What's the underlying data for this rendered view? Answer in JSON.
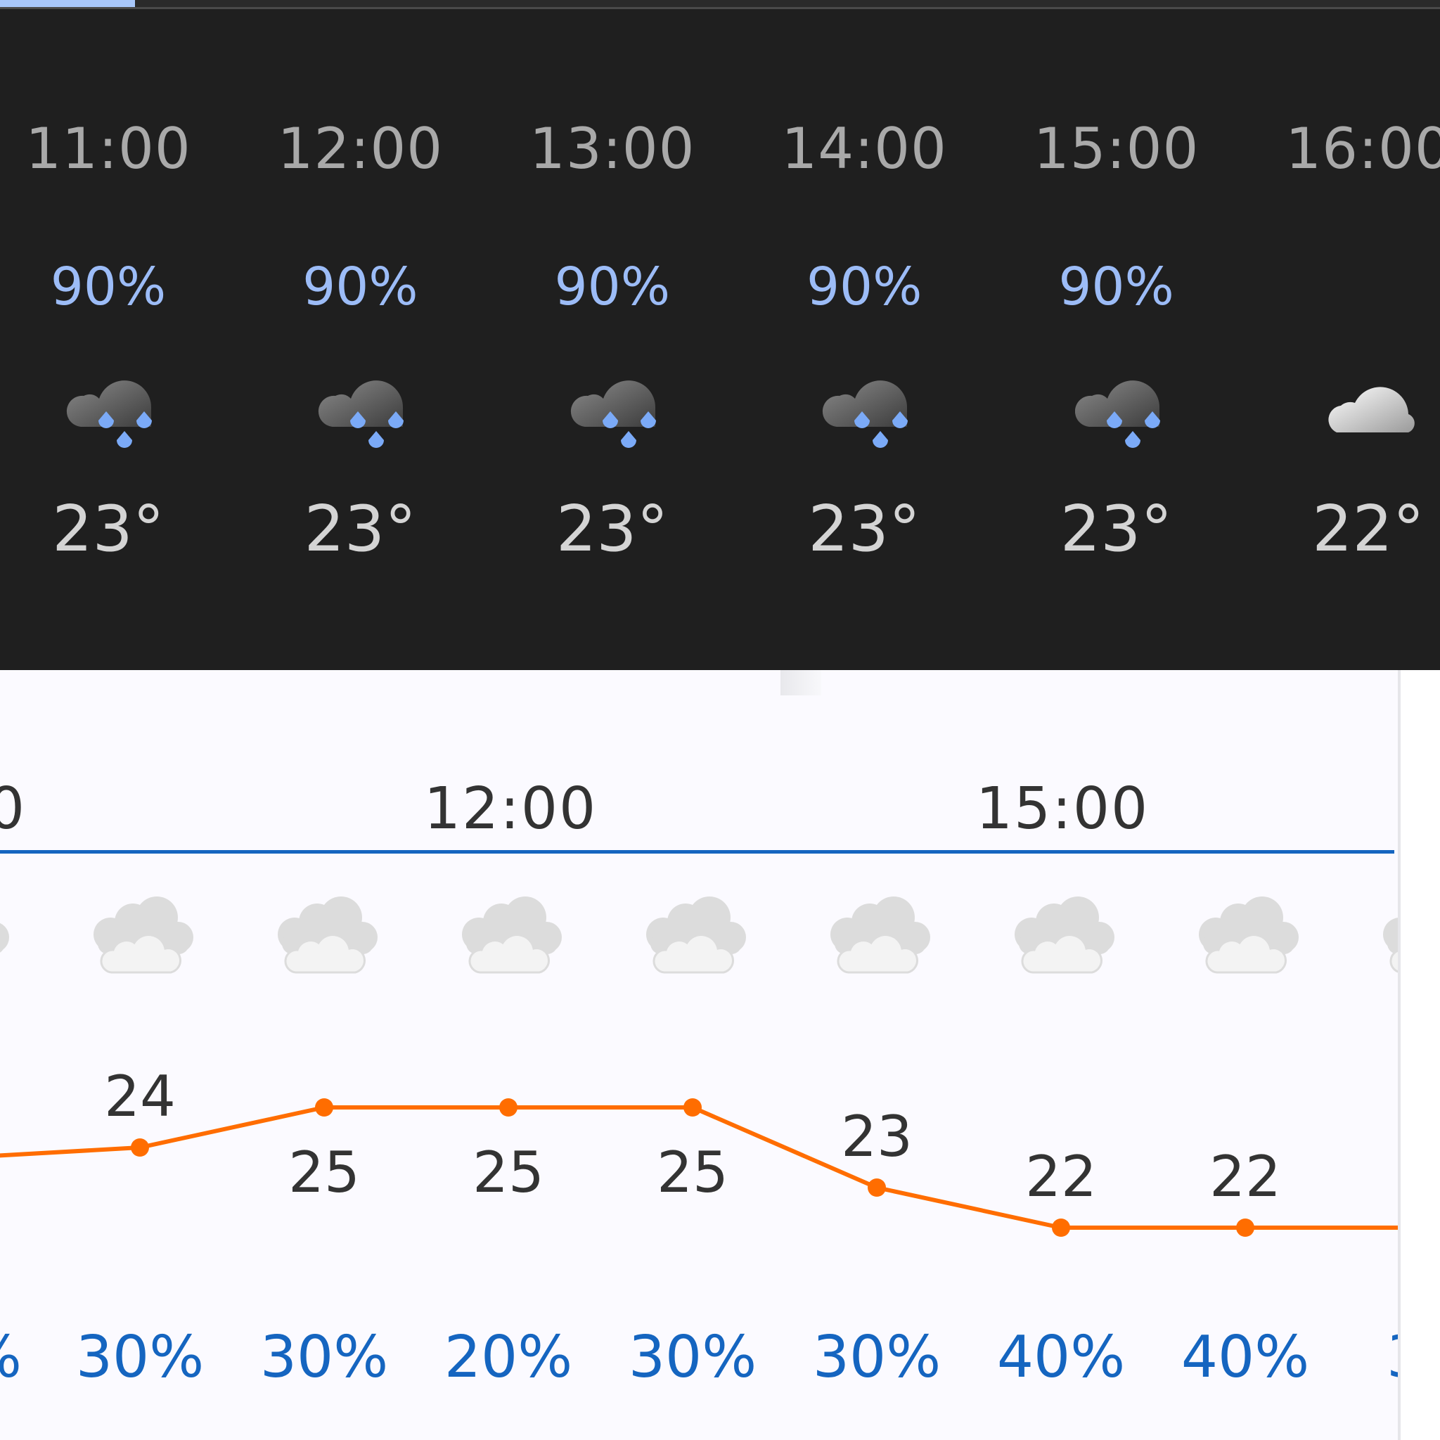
{
  "hourly_panel": {
    "hours": [
      {
        "time": "11:00",
        "precip": "90%",
        "icon": "rain-cloud-icon",
        "temp": "23°"
      },
      {
        "time": "12:00",
        "precip": "90%",
        "icon": "rain-cloud-icon",
        "temp": "23°"
      },
      {
        "time": "13:00",
        "precip": "90%",
        "icon": "rain-cloud-icon",
        "temp": "23°"
      },
      {
        "time": "14:00",
        "precip": "90%",
        "icon": "rain-cloud-icon",
        "temp": "23°"
      },
      {
        "time": "15:00",
        "precip": "90%",
        "icon": "rain-cloud-icon",
        "temp": "23°"
      },
      {
        "time": "16:00",
        "precip": "",
        "icon": "cloud-icon",
        "temp": "22°"
      }
    ],
    "colors": {
      "background": "#1f1f1f",
      "precip": "#9cbcf7",
      "drop": "#7baaf7"
    }
  },
  "forecast_chart": {
    "axis_labels": [
      "0",
      "12:00",
      "15:00"
    ],
    "chart_data": {
      "type": "line",
      "temperatures": [
        24,
        25,
        25,
        25,
        23,
        22,
        22
      ],
      "precipitation": [
        "30%",
        "30%",
        "20%",
        "30%",
        "30%",
        "40%",
        "40%"
      ],
      "partial_precip_left": "%",
      "partial_precip_right": "3",
      "icons": "cloudy-icon"
    },
    "colors": {
      "line": "#ff6d00",
      "axis": "#1565c0",
      "precip": "#1565c0"
    }
  }
}
